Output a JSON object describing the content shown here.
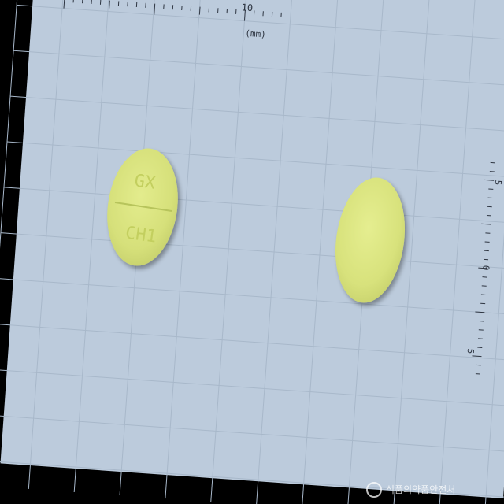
{
  "ruler_top": {
    "tick_labels": [
      "0",
      "10"
    ],
    "unit": "(mm)"
  },
  "ruler_right": {
    "tick_labels": [
      "5",
      "0",
      "5"
    ]
  },
  "tablet_front": {
    "imprint_top": "GX",
    "imprint_bottom": "CH1",
    "color": "#d9e47a"
  },
  "tablet_back": {
    "color": "#dbe47c"
  },
  "watermark": {
    "text": "식품의약품안전처"
  },
  "colors": {
    "background": "#bccbdc",
    "grid": "#a7b7c9",
    "border": "#000000"
  }
}
